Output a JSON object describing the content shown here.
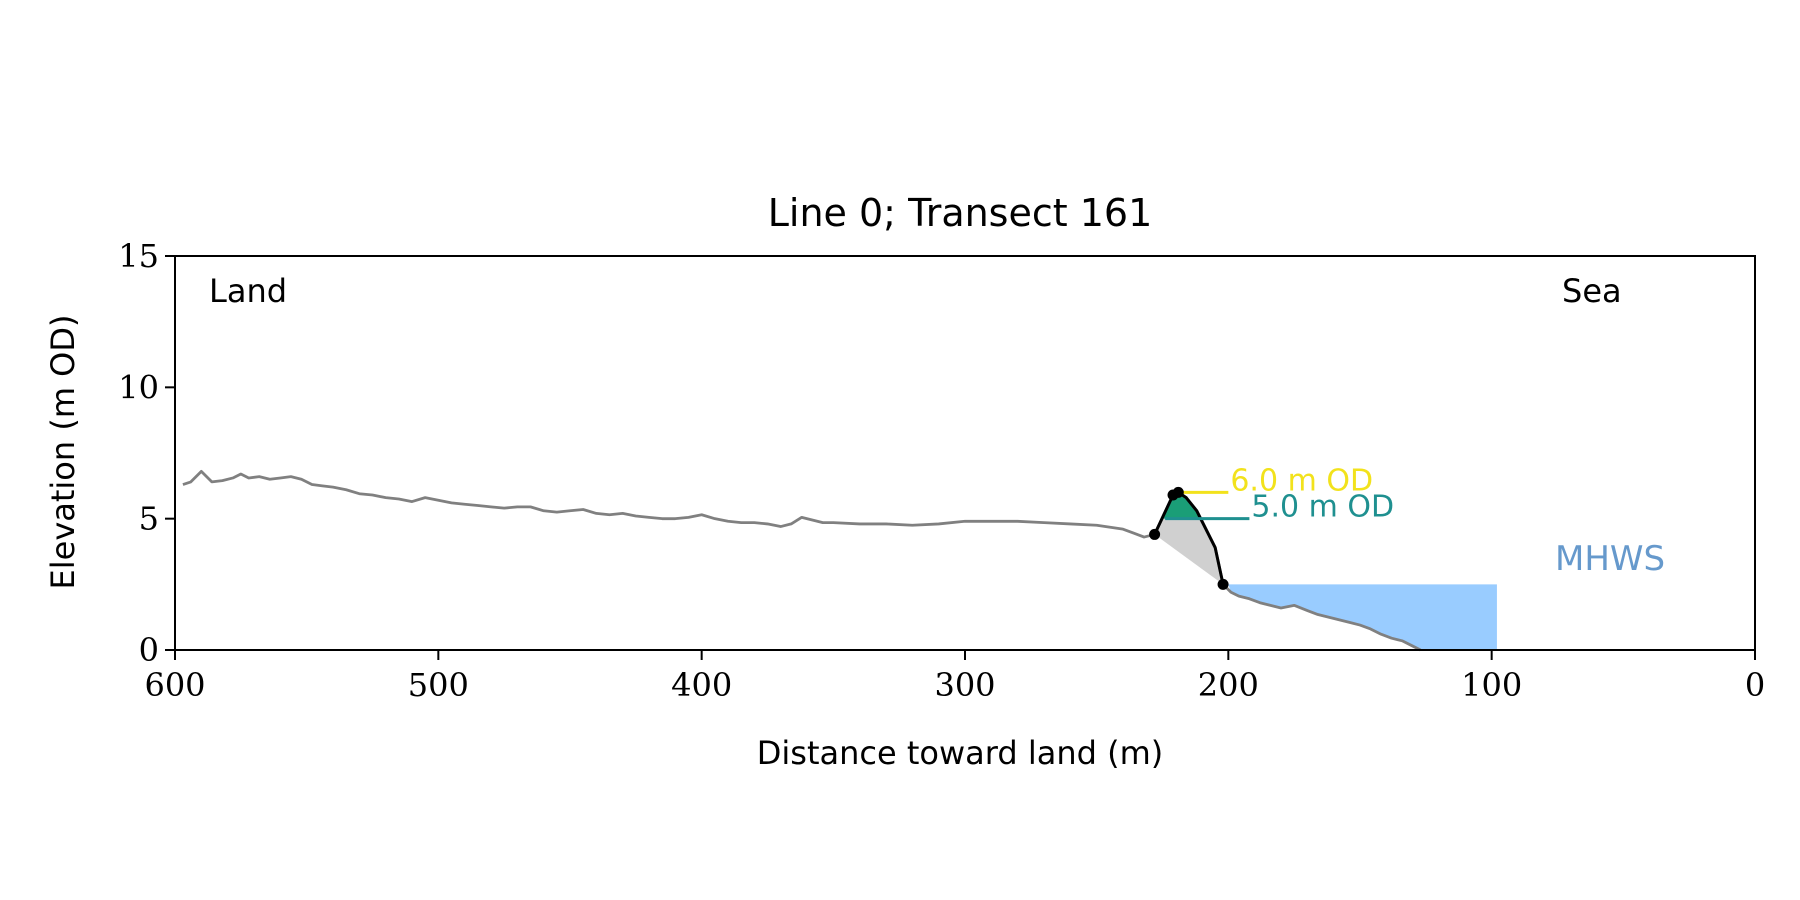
{
  "chart_data": {
    "type": "line",
    "title": "Line 0; Transect 161",
    "xlabel": "Distance toward land (m)",
    "ylabel": "Elevation (m OD)",
    "xlim": [
      600,
      0
    ],
    "ylim": [
      0,
      15
    ],
    "x_reversed": true,
    "xticks": [
      600,
      500,
      400,
      300,
      200,
      100,
      0
    ],
    "yticks": [
      0,
      5,
      10,
      15
    ],
    "grid": false,
    "annotations": {
      "land": "Land",
      "sea": "Sea",
      "mhws": "MHWS",
      "level_6": "6.0 m OD",
      "level_5": "5.0 m OD"
    },
    "colors": {
      "profile": "#808080",
      "dune": "#000000",
      "fill_above_5": "#1a9e77",
      "fill_toe": "#d0d0d0",
      "sea": "#99ccff",
      "mhws_text": "#6699cc",
      "level_6": "#f2e21c",
      "level_5": "#1f9090"
    },
    "mhws": {
      "elevation": 2.5,
      "x_start": 200,
      "x_end": 98
    },
    "levels": [
      {
        "name": "6.0 m OD",
        "elevation": 6.0,
        "x_start": 219,
        "x_end": 200
      },
      {
        "name": "5.0 m OD",
        "elevation": 5.0,
        "x_start": 224,
        "x_end": 192
      }
    ],
    "dune_points": [
      {
        "x": 228,
        "y": 4.4
      },
      {
        "x": 221,
        "y": 5.9
      },
      {
        "x": 219,
        "y": 6.0
      },
      {
        "x": 202,
        "y": 2.5
      }
    ],
    "profile": {
      "x": [
        597,
        594,
        590,
        586,
        582,
        578,
        575,
        572,
        568,
        564,
        560,
        556,
        552,
        548,
        544,
        540,
        535,
        530,
        525,
        520,
        515,
        510,
        505,
        500,
        495,
        490,
        485,
        480,
        475,
        470,
        465,
        460,
        455,
        450,
        445,
        440,
        435,
        430,
        425,
        420,
        415,
        410,
        405,
        400,
        395,
        390,
        385,
        380,
        375,
        370,
        366,
        362,
        358,
        354,
        350,
        340,
        330,
        320,
        310,
        300,
        290,
        280,
        270,
        260,
        250,
        240,
        236,
        232,
        228,
        221,
        219,
        216,
        212,
        208,
        205,
        202,
        199,
        196,
        192,
        188,
        184,
        180,
        175,
        170,
        166,
        162,
        158,
        154,
        150,
        146,
        142,
        138,
        134,
        130,
        127
      ],
      "y": [
        6.3,
        6.4,
        6.8,
        6.4,
        6.45,
        6.55,
        6.7,
        6.55,
        6.6,
        6.5,
        6.55,
        6.6,
        6.5,
        6.3,
        6.25,
        6.2,
        6.1,
        5.95,
        5.9,
        5.8,
        5.75,
        5.65,
        5.8,
        5.7,
        5.6,
        5.55,
        5.5,
        5.45,
        5.4,
        5.45,
        5.45,
        5.3,
        5.25,
        5.3,
        5.35,
        5.2,
        5.15,
        5.2,
        5.1,
        5.05,
        5.0,
        5.0,
        5.05,
        5.15,
        5.0,
        4.9,
        4.85,
        4.85,
        4.8,
        4.7,
        4.8,
        5.05,
        4.95,
        4.85,
        4.85,
        4.8,
        4.8,
        4.75,
        4.8,
        4.9,
        4.9,
        4.9,
        4.85,
        4.8,
        4.75,
        4.6,
        4.45,
        4.3,
        4.4,
        5.9,
        6.0,
        5.8,
        5.3,
        4.5,
        3.9,
        2.5,
        2.2,
        2.05,
        1.95,
        1.8,
        1.7,
        1.6,
        1.7,
        1.5,
        1.35,
        1.25,
        1.15,
        1.05,
        0.95,
        0.8,
        0.6,
        0.45,
        0.35,
        0.15,
        0.0
      ]
    }
  }
}
